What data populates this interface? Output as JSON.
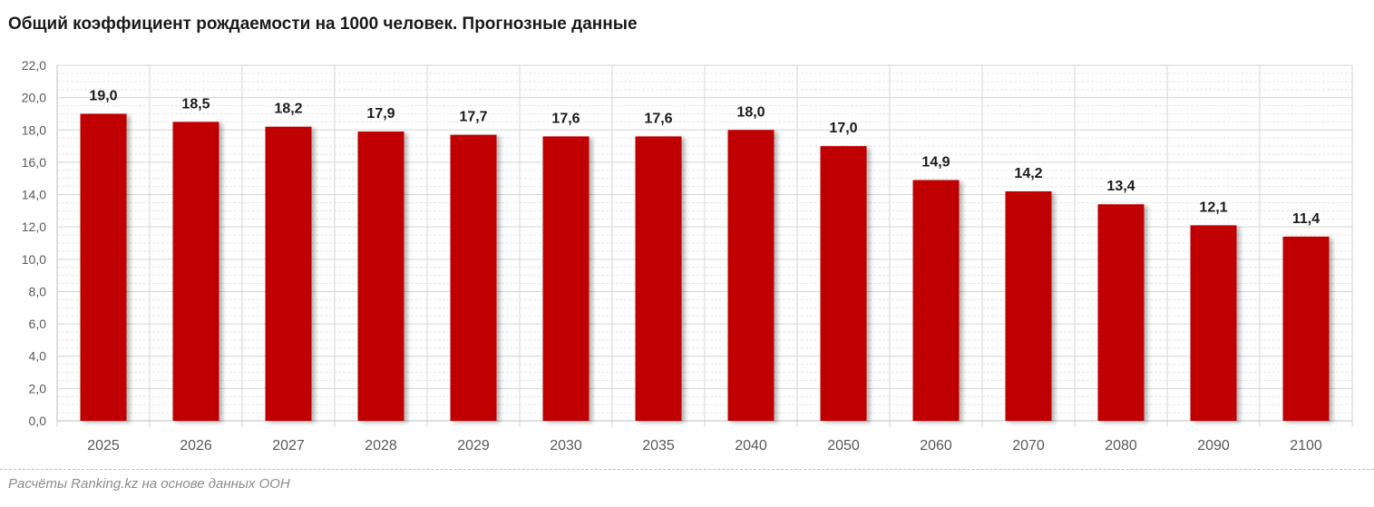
{
  "chart_data": {
    "type": "bar",
    "title": "Общий коэффициент рождаемости на 1000 человек. Прогнозные данные",
    "categories": [
      "2025",
      "2026",
      "2027",
      "2028",
      "2029",
      "2030",
      "2035",
      "2040",
      "2050",
      "2060",
      "2070",
      "2080",
      "2090",
      "2100"
    ],
    "values": [
      19.0,
      18.5,
      18.2,
      17.9,
      17.7,
      17.6,
      17.6,
      18.0,
      17.0,
      14.9,
      14.2,
      13.4,
      12.1,
      11.4
    ],
    "value_labels": [
      "19,0",
      "18,5",
      "18,2",
      "17,9",
      "17,7",
      "17,6",
      "17,6",
      "18,0",
      "17,0",
      "14,9",
      "14,2",
      "13,4",
      "12,1",
      "11,4"
    ],
    "yticks": [
      "0,0",
      "2,0",
      "4,0",
      "6,0",
      "8,0",
      "10,0",
      "12,0",
      "14,0",
      "16,0",
      "18,0",
      "20,0",
      "22,0"
    ],
    "ylim": [
      0,
      22
    ],
    "xlabel": "",
    "ylabel": "",
    "grid": true,
    "legend": "none",
    "bar_color": "#c00000"
  },
  "source_note": "Расчёты Ranking.kz на основе данных ООН"
}
